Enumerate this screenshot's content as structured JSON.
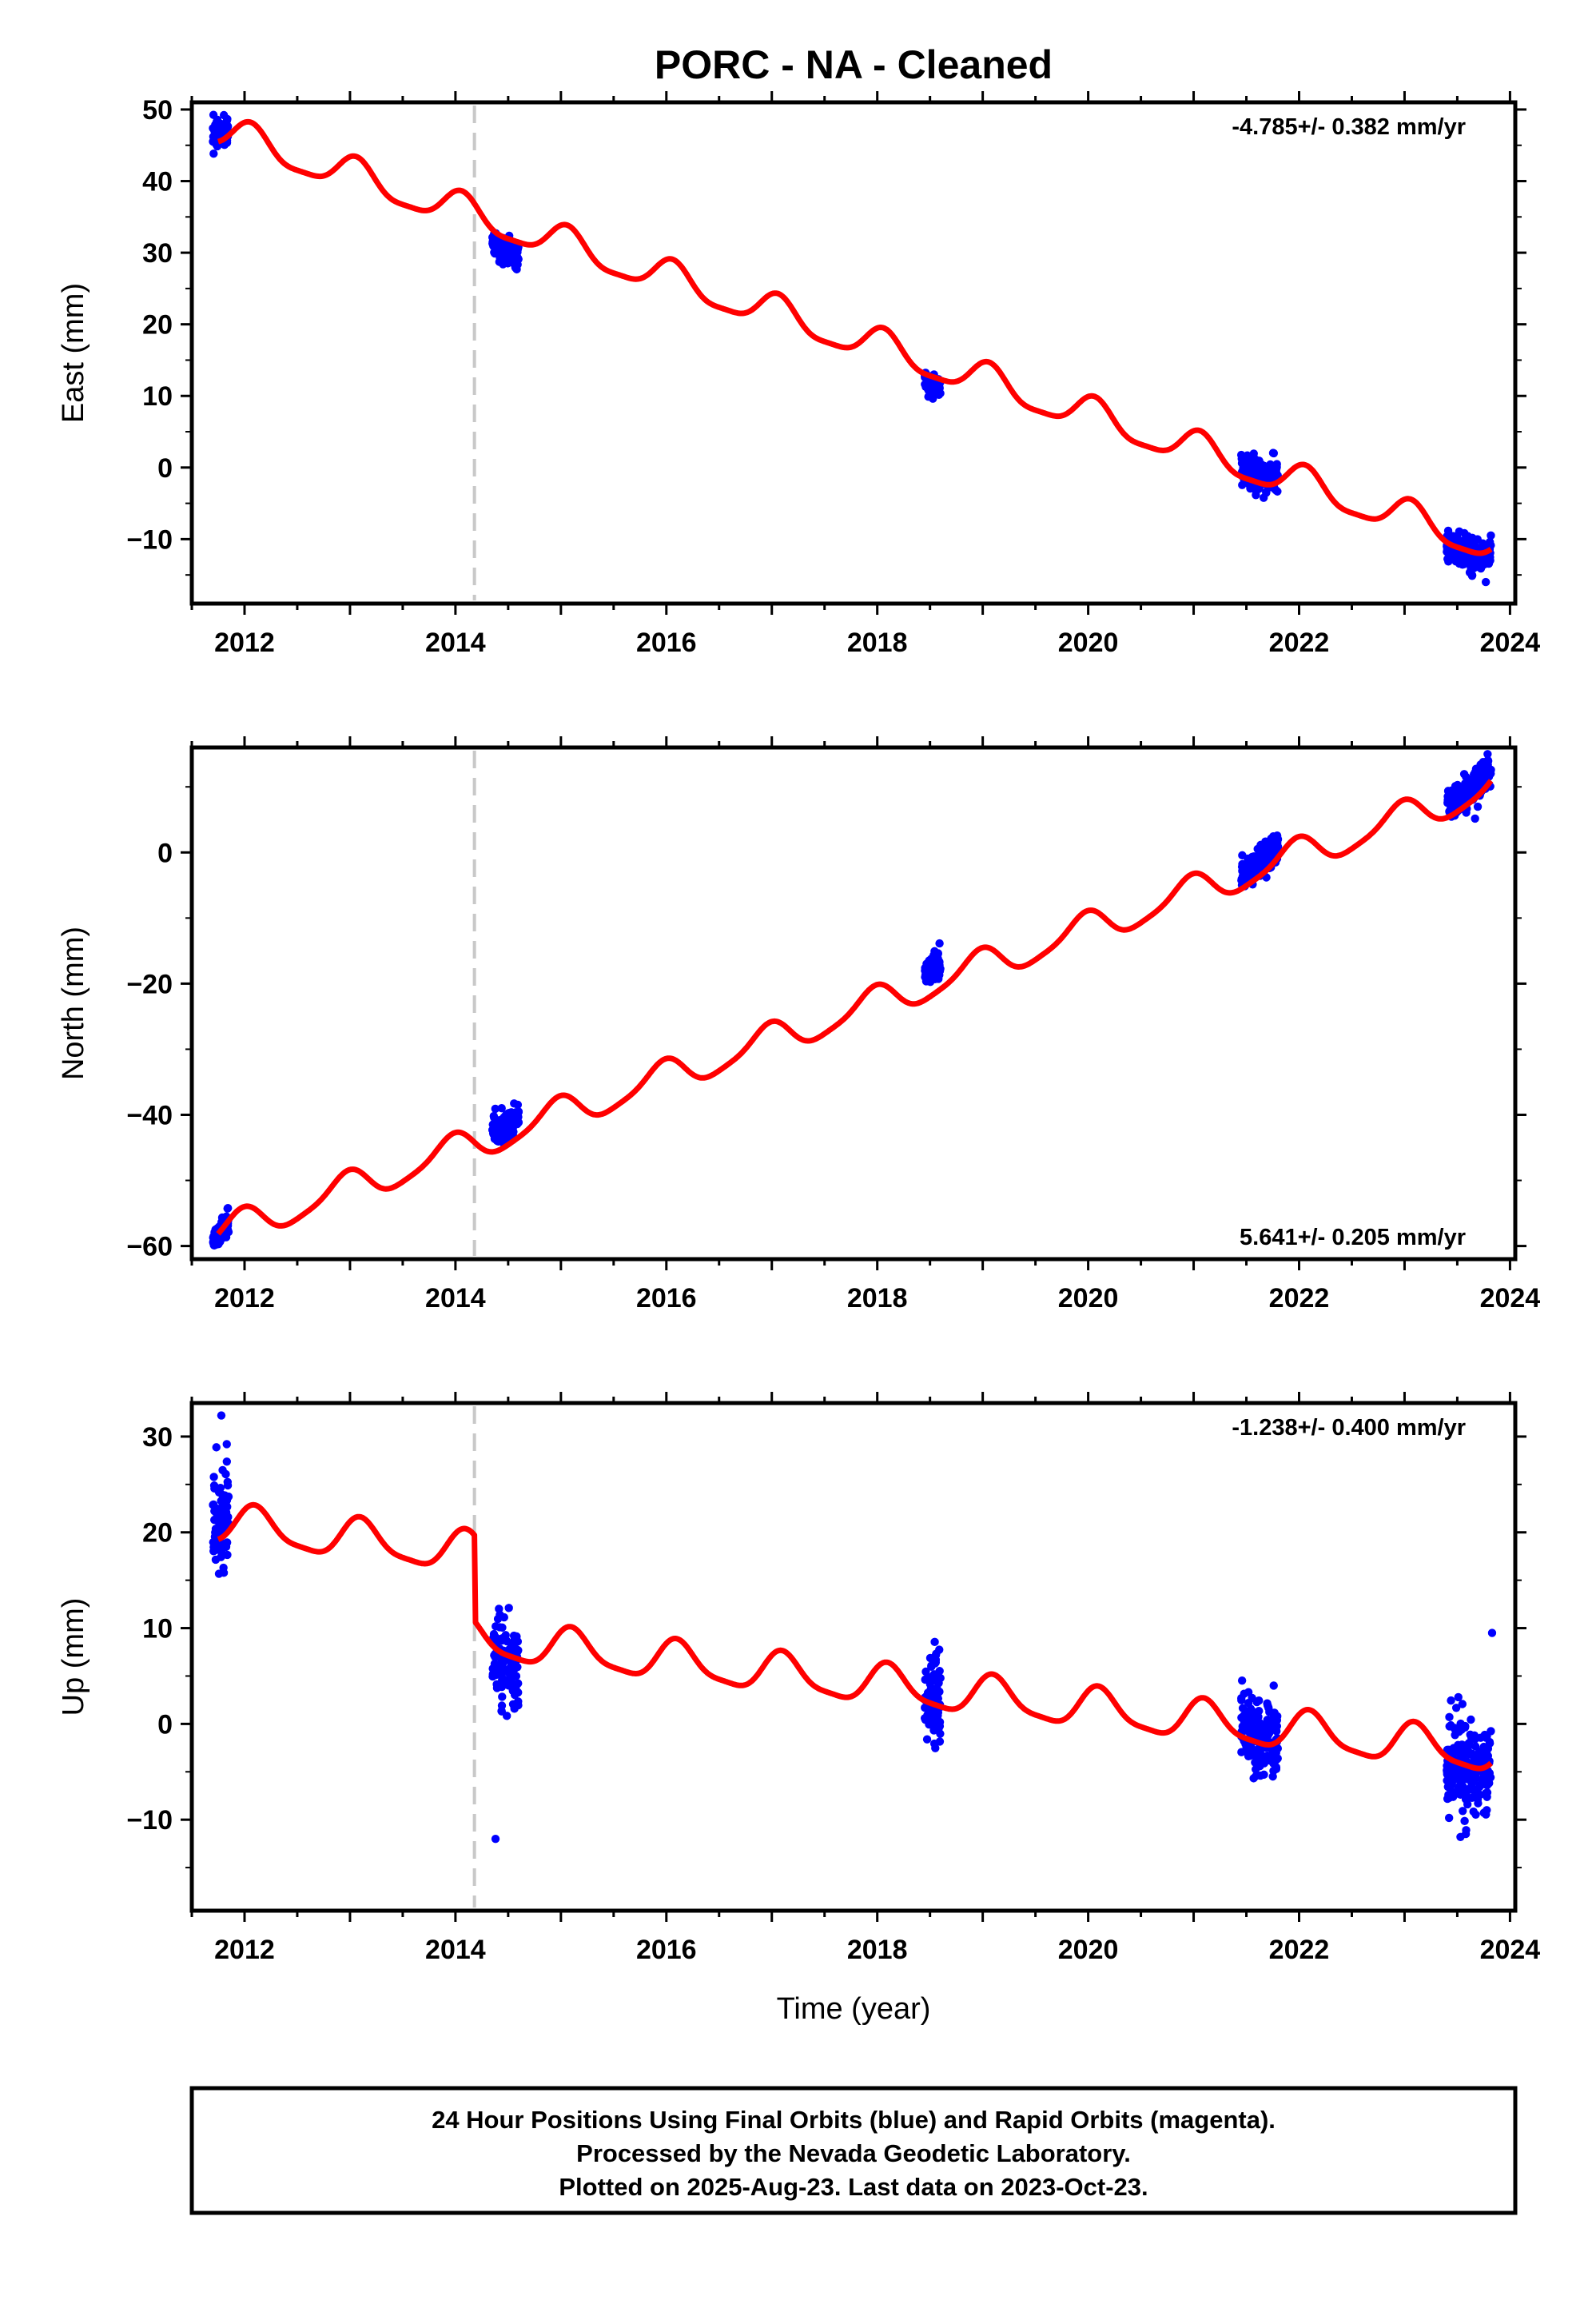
{
  "title": "PORC  - NA - Cleaned",
  "colors": {
    "data": "#0000ff",
    "model": "#ff0000",
    "event": "#c8c8c8",
    "frame": "#000000"
  },
  "chart_data": [
    {
      "type": "scatter",
      "component": "east",
      "ylabel": "East (mm)",
      "xlabel": "",
      "rate_label": "-4.785+/- 0.382 mm/yr",
      "xlim": [
        2011.5,
        2024.05
      ],
      "ylim": [
        -19,
        51
      ],
      "xticks": [
        2012,
        2014,
        2016,
        2018,
        2020,
        2022,
        2024
      ],
      "yticks": [
        -10,
        0,
        10,
        20,
        30,
        40,
        50
      ],
      "event_line_x": 2014.18,
      "model": {
        "intercept_at_2012": 45.6,
        "rate": -4.785,
        "annual_amplitude": 2.3,
        "annual_phase": 1.2,
        "semiannual_amplitude": 0.6,
        "offsets": []
      },
      "data_clusters": [
        {
          "start": 2011.7,
          "end": 2011.85,
          "center": 47.3,
          "spread": 1.8
        },
        {
          "start": 2014.35,
          "end": 2014.6,
          "center": 29.0,
          "spread": 1.8
        },
        {
          "start": 2018.45,
          "end": 2018.6,
          "center": 11.0,
          "spread": 1.3
        },
        {
          "start": 2021.45,
          "end": 2021.8,
          "center": -0.5,
          "spread": 2.2
        },
        {
          "start": 2023.4,
          "end": 2023.82,
          "center": -12.5,
          "spread": 2.0
        }
      ]
    },
    {
      "type": "scatter",
      "component": "north",
      "ylabel": "North (mm)",
      "xlabel": "",
      "rate_label": "5.641+/- 0.205 mm/yr",
      "xlim": [
        2011.5,
        2024.05
      ],
      "ylim": [
        -62,
        16
      ],
      "xticks": [
        2012,
        2014,
        2016,
        2018,
        2020,
        2022,
        2024
      ],
      "yticks": [
        -60,
        -40,
        -20,
        0
      ],
      "event_line_x": 2014.18,
      "model": {
        "intercept_at_2012": -56.8,
        "rate": 5.641,
        "annual_amplitude": 2.4,
        "annual_phase": 1.8,
        "semiannual_amplitude": 0.5,
        "offsets": []
      },
      "data_clusters": [
        {
          "start": 2011.7,
          "end": 2011.85,
          "center": -58.0,
          "spread": 1.6
        },
        {
          "start": 2014.35,
          "end": 2014.6,
          "center": -39.5,
          "spread": 2.2
        },
        {
          "start": 2018.45,
          "end": 2018.6,
          "center": -15.0,
          "spread": 1.8
        },
        {
          "start": 2021.45,
          "end": 2021.8,
          "center": -0.5,
          "spread": 2.0
        },
        {
          "start": 2023.4,
          "end": 2023.82,
          "center": 10.5,
          "spread": 2.0
        }
      ]
    },
    {
      "type": "scatter",
      "component": "up",
      "ylabel": "Up (mm)",
      "xlabel": "Time (year)",
      "rate_label": "-1.238+/- 0.400 mm/yr",
      "xlim": [
        2011.5,
        2024.05
      ],
      "ylim": [
        -19.5,
        33.5
      ],
      "xticks": [
        2012,
        2014,
        2016,
        2018,
        2020,
        2022,
        2024
      ],
      "yticks": [
        -10,
        0,
        10,
        20,
        30
      ],
      "event_line_x": 2014.18,
      "model": {
        "intercept_at_2012": 20.5,
        "rate": -1.238,
        "annual_amplitude": 2.0,
        "annual_phase": 0.9,
        "semiannual_amplitude": 0.5,
        "offsets": [
          {
            "at": 2014.18,
            "size": -9.0
          }
        ]
      },
      "data_clusters": [
        {
          "start": 2011.7,
          "end": 2011.85,
          "center": 22.0,
          "spread": 4.5
        },
        {
          "start": 2014.35,
          "end": 2014.6,
          "center": 6.0,
          "spread": 4.5
        },
        {
          "start": 2018.45,
          "end": 2018.6,
          "center": 3.0,
          "spread": 4.5
        },
        {
          "start": 2021.45,
          "end": 2021.8,
          "center": -1.0,
          "spread": 3.6
        },
        {
          "start": 2023.4,
          "end": 2023.82,
          "center": -5.0,
          "spread": 4.5
        }
      ],
      "outliers": [
        {
          "x": 2014.38,
          "y": -12.0
        },
        {
          "x": 2011.78,
          "y": 32.2
        },
        {
          "x": 2023.83,
          "y": 9.5
        }
      ]
    }
  ],
  "footer": {
    "line1": "24 Hour Positions Using Final Orbits (blue) and Rapid Orbits (magenta).",
    "line2": "Processed by the Nevada Geodetic Laboratory.",
    "line3": "Plotted on 2025-Aug-23. Last data on 2023-Oct-23."
  }
}
